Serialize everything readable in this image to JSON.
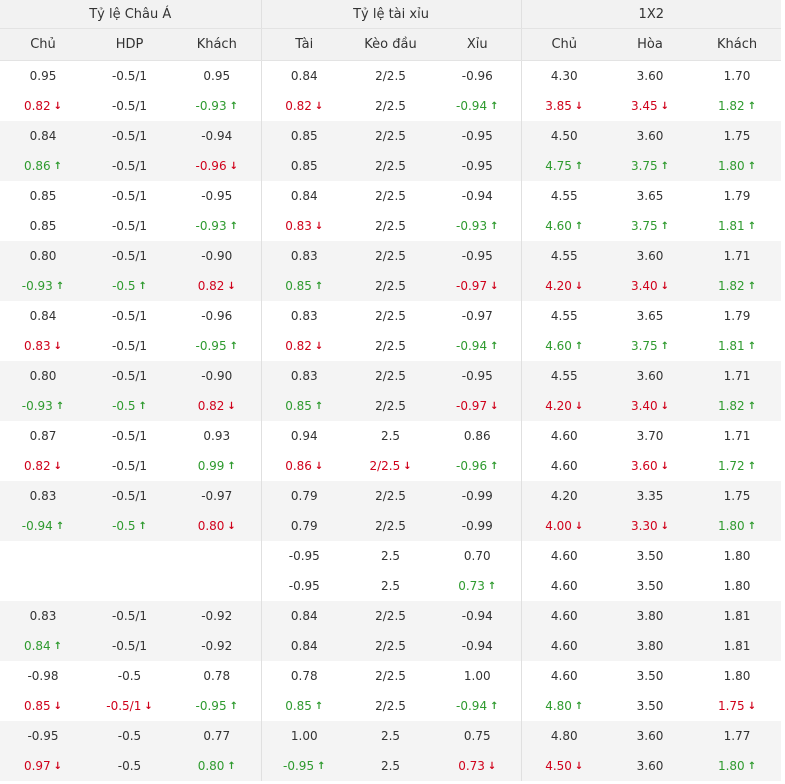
{
  "groups": {
    "asian": "Tỷ lệ Châu Á",
    "overunder": "Tỷ lệ tài xỉu",
    "x12": "1X2"
  },
  "columns": [
    "Chủ",
    "HDP",
    "Khách",
    "Tài",
    "Kèo đầu",
    "Xỉu",
    "Chủ",
    "Hòa",
    "Khách"
  ],
  "colors": {
    "up": "#2e9a2e",
    "down": "#d0021b",
    "shade": "#f4f4f4",
    "header": "#f2f2f2"
  },
  "icons": {
    "up": "arrow-up-icon",
    "down": "arrow-down-icon"
  },
  "rows": [
    [
      [
        "0.95",
        ""
      ],
      [
        "-0.5/1",
        ""
      ],
      [
        "0.95",
        ""
      ],
      [
        "0.84",
        ""
      ],
      [
        "2/2.5",
        ""
      ],
      [
        "-0.96",
        ""
      ],
      [
        "4.30",
        ""
      ],
      [
        "3.60",
        ""
      ],
      [
        "1.70",
        ""
      ]
    ],
    [
      [
        "0.82",
        "down"
      ],
      [
        "-0.5/1",
        ""
      ],
      [
        "-0.93",
        "up"
      ],
      [
        "0.82",
        "down"
      ],
      [
        "2/2.5",
        ""
      ],
      [
        "-0.94",
        "up"
      ],
      [
        "3.85",
        "down"
      ],
      [
        "3.45",
        "down"
      ],
      [
        "1.82",
        "up"
      ]
    ],
    [
      [
        "0.84",
        ""
      ],
      [
        "-0.5/1",
        ""
      ],
      [
        "-0.94",
        ""
      ],
      [
        "0.85",
        ""
      ],
      [
        "2/2.5",
        ""
      ],
      [
        "-0.95",
        ""
      ],
      [
        "4.50",
        ""
      ],
      [
        "3.60",
        ""
      ],
      [
        "1.75",
        ""
      ]
    ],
    [
      [
        "0.86",
        "up"
      ],
      [
        "-0.5/1",
        ""
      ],
      [
        "-0.96",
        "down"
      ],
      [
        "0.85",
        ""
      ],
      [
        "2/2.5",
        ""
      ],
      [
        "-0.95",
        ""
      ],
      [
        "4.75",
        "up"
      ],
      [
        "3.75",
        "up"
      ],
      [
        "1.80",
        "up"
      ]
    ],
    [
      [
        "0.85",
        ""
      ],
      [
        "-0.5/1",
        ""
      ],
      [
        "-0.95",
        ""
      ],
      [
        "0.84",
        ""
      ],
      [
        "2/2.5",
        ""
      ],
      [
        "-0.94",
        ""
      ],
      [
        "4.55",
        ""
      ],
      [
        "3.65",
        ""
      ],
      [
        "1.79",
        ""
      ]
    ],
    [
      [
        "0.85",
        ""
      ],
      [
        "-0.5/1",
        ""
      ],
      [
        "-0.93",
        "up"
      ],
      [
        "0.83",
        "down"
      ],
      [
        "2/2.5",
        ""
      ],
      [
        "-0.93",
        "up"
      ],
      [
        "4.60",
        "up"
      ],
      [
        "3.75",
        "up"
      ],
      [
        "1.81",
        "up"
      ]
    ],
    [
      [
        "0.80",
        ""
      ],
      [
        "-0.5/1",
        ""
      ],
      [
        "-0.90",
        ""
      ],
      [
        "0.83",
        ""
      ],
      [
        "2/2.5",
        ""
      ],
      [
        "-0.95",
        ""
      ],
      [
        "4.55",
        ""
      ],
      [
        "3.60",
        ""
      ],
      [
        "1.71",
        ""
      ]
    ],
    [
      [
        "-0.93",
        "up"
      ],
      [
        "-0.5",
        "up"
      ],
      [
        "0.82",
        "down"
      ],
      [
        "0.85",
        "up"
      ],
      [
        "2/2.5",
        ""
      ],
      [
        "-0.97",
        "down"
      ],
      [
        "4.20",
        "down"
      ],
      [
        "3.40",
        "down"
      ],
      [
        "1.82",
        "up"
      ]
    ],
    [
      [
        "0.84",
        ""
      ],
      [
        "-0.5/1",
        ""
      ],
      [
        "-0.96",
        ""
      ],
      [
        "0.83",
        ""
      ],
      [
        "2/2.5",
        ""
      ],
      [
        "-0.97",
        ""
      ],
      [
        "4.55",
        ""
      ],
      [
        "3.65",
        ""
      ],
      [
        "1.79",
        ""
      ]
    ],
    [
      [
        "0.83",
        "down"
      ],
      [
        "-0.5/1",
        ""
      ],
      [
        "-0.95",
        "up"
      ],
      [
        "0.82",
        "down"
      ],
      [
        "2/2.5",
        ""
      ],
      [
        "-0.94",
        "up"
      ],
      [
        "4.60",
        "up"
      ],
      [
        "3.75",
        "up"
      ],
      [
        "1.81",
        "up"
      ]
    ],
    [
      [
        "0.80",
        ""
      ],
      [
        "-0.5/1",
        ""
      ],
      [
        "-0.90",
        ""
      ],
      [
        "0.83",
        ""
      ],
      [
        "2/2.5",
        ""
      ],
      [
        "-0.95",
        ""
      ],
      [
        "4.55",
        ""
      ],
      [
        "3.60",
        ""
      ],
      [
        "1.71",
        ""
      ]
    ],
    [
      [
        "-0.93",
        "up"
      ],
      [
        "-0.5",
        "up"
      ],
      [
        "0.82",
        "down"
      ],
      [
        "0.85",
        "up"
      ],
      [
        "2/2.5",
        ""
      ],
      [
        "-0.97",
        "down"
      ],
      [
        "4.20",
        "down"
      ],
      [
        "3.40",
        "down"
      ],
      [
        "1.82",
        "up"
      ]
    ],
    [
      [
        "0.87",
        ""
      ],
      [
        "-0.5/1",
        ""
      ],
      [
        "0.93",
        ""
      ],
      [
        "0.94",
        ""
      ],
      [
        "2.5",
        ""
      ],
      [
        "0.86",
        ""
      ],
      [
        "4.60",
        ""
      ],
      [
        "3.70",
        ""
      ],
      [
        "1.71",
        ""
      ]
    ],
    [
      [
        "0.82",
        "down"
      ],
      [
        "-0.5/1",
        ""
      ],
      [
        "0.99",
        "up"
      ],
      [
        "0.86",
        "down"
      ],
      [
        "2/2.5",
        "down"
      ],
      [
        "-0.96",
        "up"
      ],
      [
        "4.60",
        ""
      ],
      [
        "3.60",
        "down"
      ],
      [
        "1.72",
        "up"
      ]
    ],
    [
      [
        "0.83",
        ""
      ],
      [
        "-0.5/1",
        ""
      ],
      [
        "-0.97",
        ""
      ],
      [
        "0.79",
        ""
      ],
      [
        "2/2.5",
        ""
      ],
      [
        "-0.99",
        ""
      ],
      [
        "4.20",
        ""
      ],
      [
        "3.35",
        ""
      ],
      [
        "1.75",
        ""
      ]
    ],
    [
      [
        "-0.94",
        "up"
      ],
      [
        "-0.5",
        "up"
      ],
      [
        "0.80",
        "down"
      ],
      [
        "0.79",
        ""
      ],
      [
        "2/2.5",
        ""
      ],
      [
        "-0.99",
        ""
      ],
      [
        "4.00",
        "down"
      ],
      [
        "3.30",
        "down"
      ],
      [
        "1.80",
        "up"
      ]
    ],
    [
      [
        "",
        ""
      ],
      [
        "",
        ""
      ],
      [
        "",
        ""
      ],
      [
        "-0.95",
        ""
      ],
      [
        "2.5",
        ""
      ],
      [
        "0.70",
        ""
      ],
      [
        "4.60",
        ""
      ],
      [
        "3.50",
        ""
      ],
      [
        "1.80",
        ""
      ]
    ],
    [
      [
        "",
        ""
      ],
      [
        "",
        ""
      ],
      [
        "",
        ""
      ],
      [
        "-0.95",
        ""
      ],
      [
        "2.5",
        ""
      ],
      [
        "0.73",
        "up"
      ],
      [
        "4.60",
        ""
      ],
      [
        "3.50",
        ""
      ],
      [
        "1.80",
        ""
      ]
    ],
    [
      [
        "0.83",
        ""
      ],
      [
        "-0.5/1",
        ""
      ],
      [
        "-0.92",
        ""
      ],
      [
        "0.84",
        ""
      ],
      [
        "2/2.5",
        ""
      ],
      [
        "-0.94",
        ""
      ],
      [
        "4.60",
        ""
      ],
      [
        "3.80",
        ""
      ],
      [
        "1.81",
        ""
      ]
    ],
    [
      [
        "0.84",
        "up"
      ],
      [
        "-0.5/1",
        ""
      ],
      [
        "-0.92",
        ""
      ],
      [
        "0.84",
        ""
      ],
      [
        "2/2.5",
        ""
      ],
      [
        "-0.94",
        ""
      ],
      [
        "4.60",
        ""
      ],
      [
        "3.80",
        ""
      ],
      [
        "1.81",
        ""
      ]
    ],
    [
      [
        "-0.98",
        ""
      ],
      [
        "-0.5",
        ""
      ],
      [
        "0.78",
        ""
      ],
      [
        "0.78",
        ""
      ],
      [
        "2/2.5",
        ""
      ],
      [
        "1.00",
        ""
      ],
      [
        "4.60",
        ""
      ],
      [
        "3.50",
        ""
      ],
      [
        "1.80",
        ""
      ]
    ],
    [
      [
        "0.85",
        "down"
      ],
      [
        "-0.5/1",
        "down"
      ],
      [
        "-0.95",
        "up"
      ],
      [
        "0.85",
        "up"
      ],
      [
        "2/2.5",
        ""
      ],
      [
        "-0.94",
        "up"
      ],
      [
        "4.80",
        "up"
      ],
      [
        "3.50",
        ""
      ],
      [
        "1.75",
        "down"
      ]
    ],
    [
      [
        "-0.95",
        ""
      ],
      [
        "-0.5",
        ""
      ],
      [
        "0.77",
        ""
      ],
      [
        "1.00",
        ""
      ],
      [
        "2.5",
        ""
      ],
      [
        "0.75",
        ""
      ],
      [
        "4.80",
        ""
      ],
      [
        "3.60",
        ""
      ],
      [
        "1.77",
        ""
      ]
    ],
    [
      [
        "0.97",
        "down"
      ],
      [
        "-0.5",
        ""
      ],
      [
        "0.80",
        "up"
      ],
      [
        "-0.95",
        "up"
      ],
      [
        "2.5",
        ""
      ],
      [
        "0.73",
        "down"
      ],
      [
        "4.50",
        "down"
      ],
      [
        "3.60",
        ""
      ],
      [
        "1.80",
        "up"
      ]
    ]
  ]
}
